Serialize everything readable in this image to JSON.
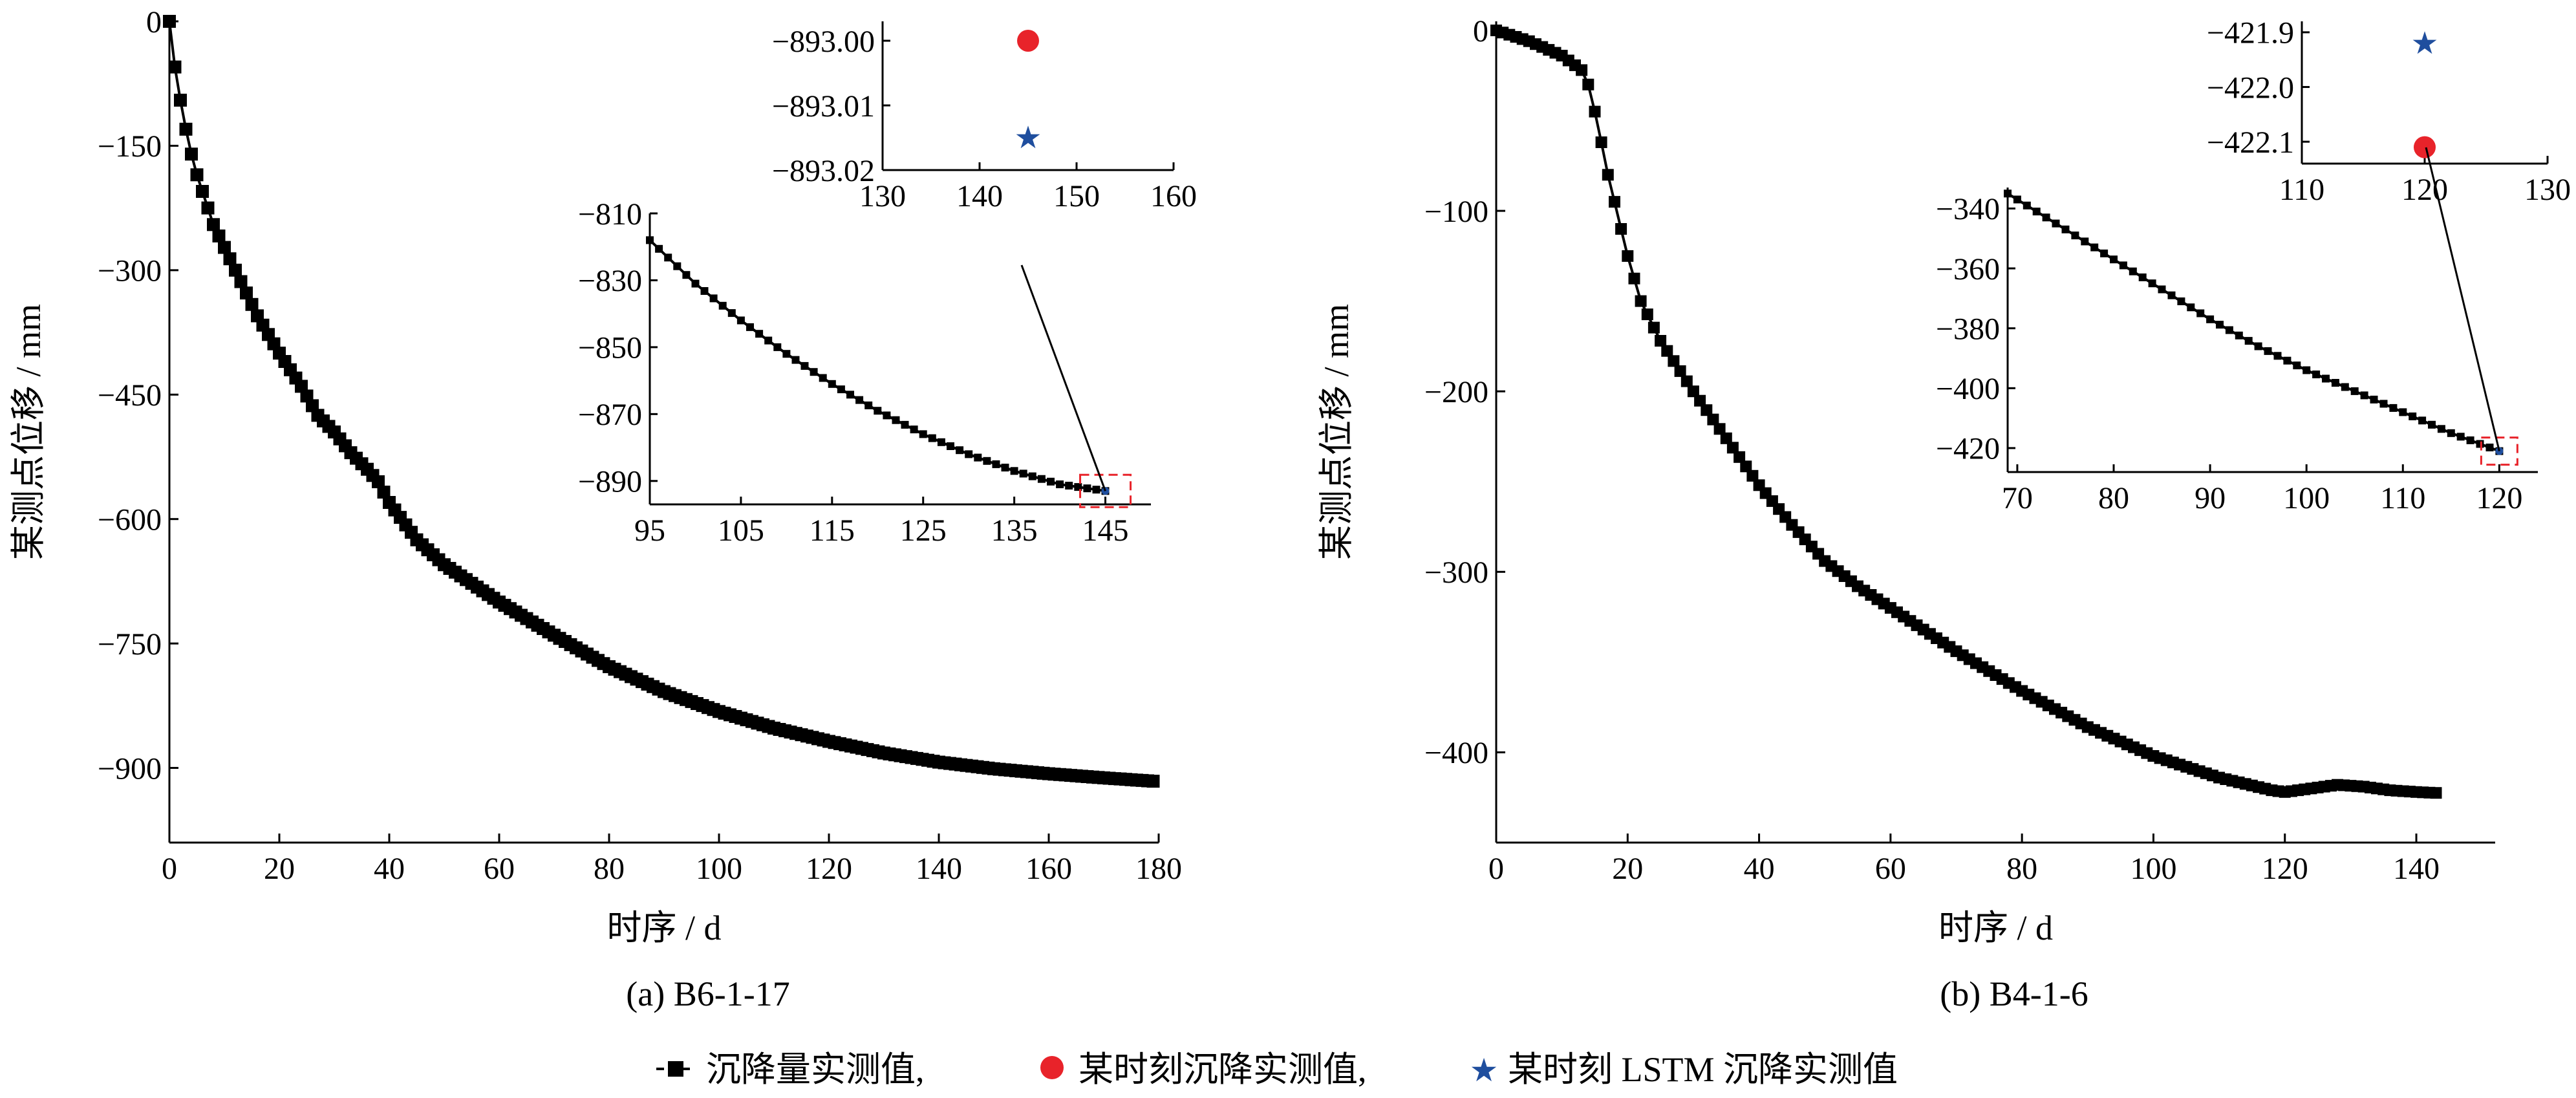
{
  "legend": {
    "measured": "沉降量实测值,",
    "point_measured": "某时刻沉降实测值,",
    "point_lstm": "某时刻 LSTM 沉降实测值"
  },
  "colors": {
    "measured": "#000000",
    "point_measured": "#e8232a",
    "point_lstm": "#1f4e9e",
    "zoom_box": "#e8232a"
  },
  "chart_data": [
    {
      "type": "line",
      "caption": "(a)  B6-1-17",
      "xlabel": "时序 / d",
      "ylabel": "某测点位移 / mm",
      "xlim": [
        0,
        180
      ],
      "ylim": [
        -990,
        0
      ],
      "xticks": [
        0,
        20,
        40,
        60,
        80,
        100,
        120,
        140,
        160,
        180
      ],
      "yticks": [
        0,
        -150,
        -300,
        -450,
        -600,
        -750,
        -900
      ],
      "ytick_labels": [
        "0",
        "−150",
        "−300",
        "−450",
        "−600",
        "−750",
        "−900"
      ],
      "anchors": [
        [
          0,
          0
        ],
        [
          1,
          -55
        ],
        [
          2,
          -95
        ],
        [
          3,
          -130
        ],
        [
          4,
          -160
        ],
        [
          5,
          -185
        ],
        [
          8,
          -245
        ],
        [
          12,
          -300
        ],
        [
          16,
          -355
        ],
        [
          20,
          -400
        ],
        [
          24,
          -440
        ],
        [
          27,
          -475
        ],
        [
          30,
          -495
        ],
        [
          33,
          -520
        ],
        [
          36,
          -540
        ],
        [
          38,
          -555
        ],
        [
          40,
          -580
        ],
        [
          45,
          -625
        ],
        [
          50,
          -655
        ],
        [
          60,
          -700
        ],
        [
          70,
          -740
        ],
        [
          80,
          -778
        ],
        [
          90,
          -808
        ],
        [
          100,
          -832
        ],
        [
          110,
          -852
        ],
        [
          120,
          -868
        ],
        [
          130,
          -882
        ],
        [
          140,
          -893
        ],
        [
          150,
          -901
        ],
        [
          160,
          -907
        ],
        [
          170,
          -912
        ],
        [
          179,
          -916
        ]
      ],
      "inset_line": {
        "xlim": [
          95,
          150
        ],
        "ylim": [
          -897,
          -810
        ],
        "xticks": [
          95,
          105,
          115,
          125,
          135,
          145
        ],
        "yticks": [
          -810,
          -830,
          -850,
          -870,
          -890
        ],
        "ytick_labels": [
          "−810",
          "−830",
          "−850",
          "−870",
          "−890"
        ],
        "anchors": [
          [
            95,
            -818
          ],
          [
            100,
            -831
          ],
          [
            105,
            -842
          ],
          [
            110,
            -852
          ],
          [
            115,
            -861
          ],
          [
            120,
            -869
          ],
          [
            125,
            -876
          ],
          [
            130,
            -882
          ],
          [
            135,
            -887
          ],
          [
            140,
            -891
          ],
          [
            145,
            -893
          ]
        ]
      },
      "inset_points": {
        "xlim": [
          130,
          160
        ],
        "ylim": [
          -893.02,
          -892.997
        ],
        "xticks": [
          130,
          140,
          150,
          160
        ],
        "yticks": [
          -893.0,
          -893.01,
          -893.02
        ],
        "ytick_labels": [
          "−893.00",
          "−893.01",
          "−893.02"
        ],
        "measured_point": [
          145,
          -893.0
        ],
        "lstm_point": [
          145,
          -893.015
        ]
      }
    },
    {
      "type": "line",
      "caption": "(b)  B4-1-6",
      "xlabel": "时序 / d",
      "ylabel": "某测点位移 / mm",
      "xlim": [
        0,
        152
      ],
      "ylim": [
        -450,
        5
      ],
      "xticks": [
        0,
        20,
        40,
        60,
        80,
        100,
        120,
        140
      ],
      "yticks": [
        0,
        -100,
        -200,
        -300,
        -400
      ],
      "ytick_labels": [
        "0",
        "−100",
        "−200",
        "−300",
        "−400"
      ],
      "anchors": [
        [
          0,
          0
        ],
        [
          5,
          -6
        ],
        [
          10,
          -14
        ],
        [
          13,
          -22
        ],
        [
          14,
          -30
        ],
        [
          15,
          -45
        ],
        [
          16,
          -62
        ],
        [
          17,
          -80
        ],
        [
          18,
          -95
        ],
        [
          19,
          -110
        ],
        [
          20,
          -125
        ],
        [
          22,
          -150
        ],
        [
          25,
          -172
        ],
        [
          30,
          -200
        ],
        [
          35,
          -226
        ],
        [
          40,
          -252
        ],
        [
          45,
          -274
        ],
        [
          50,
          -294
        ],
        [
          55,
          -308
        ],
        [
          60,
          -320
        ],
        [
          70,
          -344
        ],
        [
          80,
          -366
        ],
        [
          90,
          -386
        ],
        [
          100,
          -402
        ],
        [
          110,
          -414
        ],
        [
          118,
          -421
        ],
        [
          120,
          -422
        ],
        [
          124,
          -420
        ],
        [
          128,
          -418
        ],
        [
          132,
          -419
        ],
        [
          136,
          -421
        ],
        [
          140,
          -422
        ],
        [
          143,
          -422.5
        ]
      ],
      "inset_line": {
        "xlim": [
          69,
          124
        ],
        "ylim": [
          -428,
          -333
        ],
        "xticks": [
          70,
          80,
          90,
          100,
          110,
          120
        ],
        "yticks": [
          -340,
          -360,
          -380,
          -400,
          -420
        ],
        "ytick_labels": [
          "−340",
          "−360",
          "−380",
          "−400",
          "−420"
        ],
        "anchors": [
          [
            69,
            -335
          ],
          [
            75,
            -347
          ],
          [
            80,
            -357
          ],
          [
            85,
            -367
          ],
          [
            90,
            -377
          ],
          [
            95,
            -386
          ],
          [
            100,
            -394
          ],
          [
            105,
            -401
          ],
          [
            110,
            -408
          ],
          [
            115,
            -415
          ],
          [
            120,
            -421
          ]
        ]
      },
      "inset_points": {
        "xlim": [
          110,
          130
        ],
        "ylim": [
          -422.14,
          -421.88
        ],
        "xticks": [
          110,
          120,
          130
        ],
        "yticks": [
          -421.9,
          -422.0,
          -422.1
        ],
        "ytick_labels": [
          "−421.9",
          "−422.0",
          "−422.1"
        ],
        "measured_point": [
          120,
          -422.11
        ],
        "lstm_point": [
          120,
          -421.92
        ]
      }
    }
  ]
}
